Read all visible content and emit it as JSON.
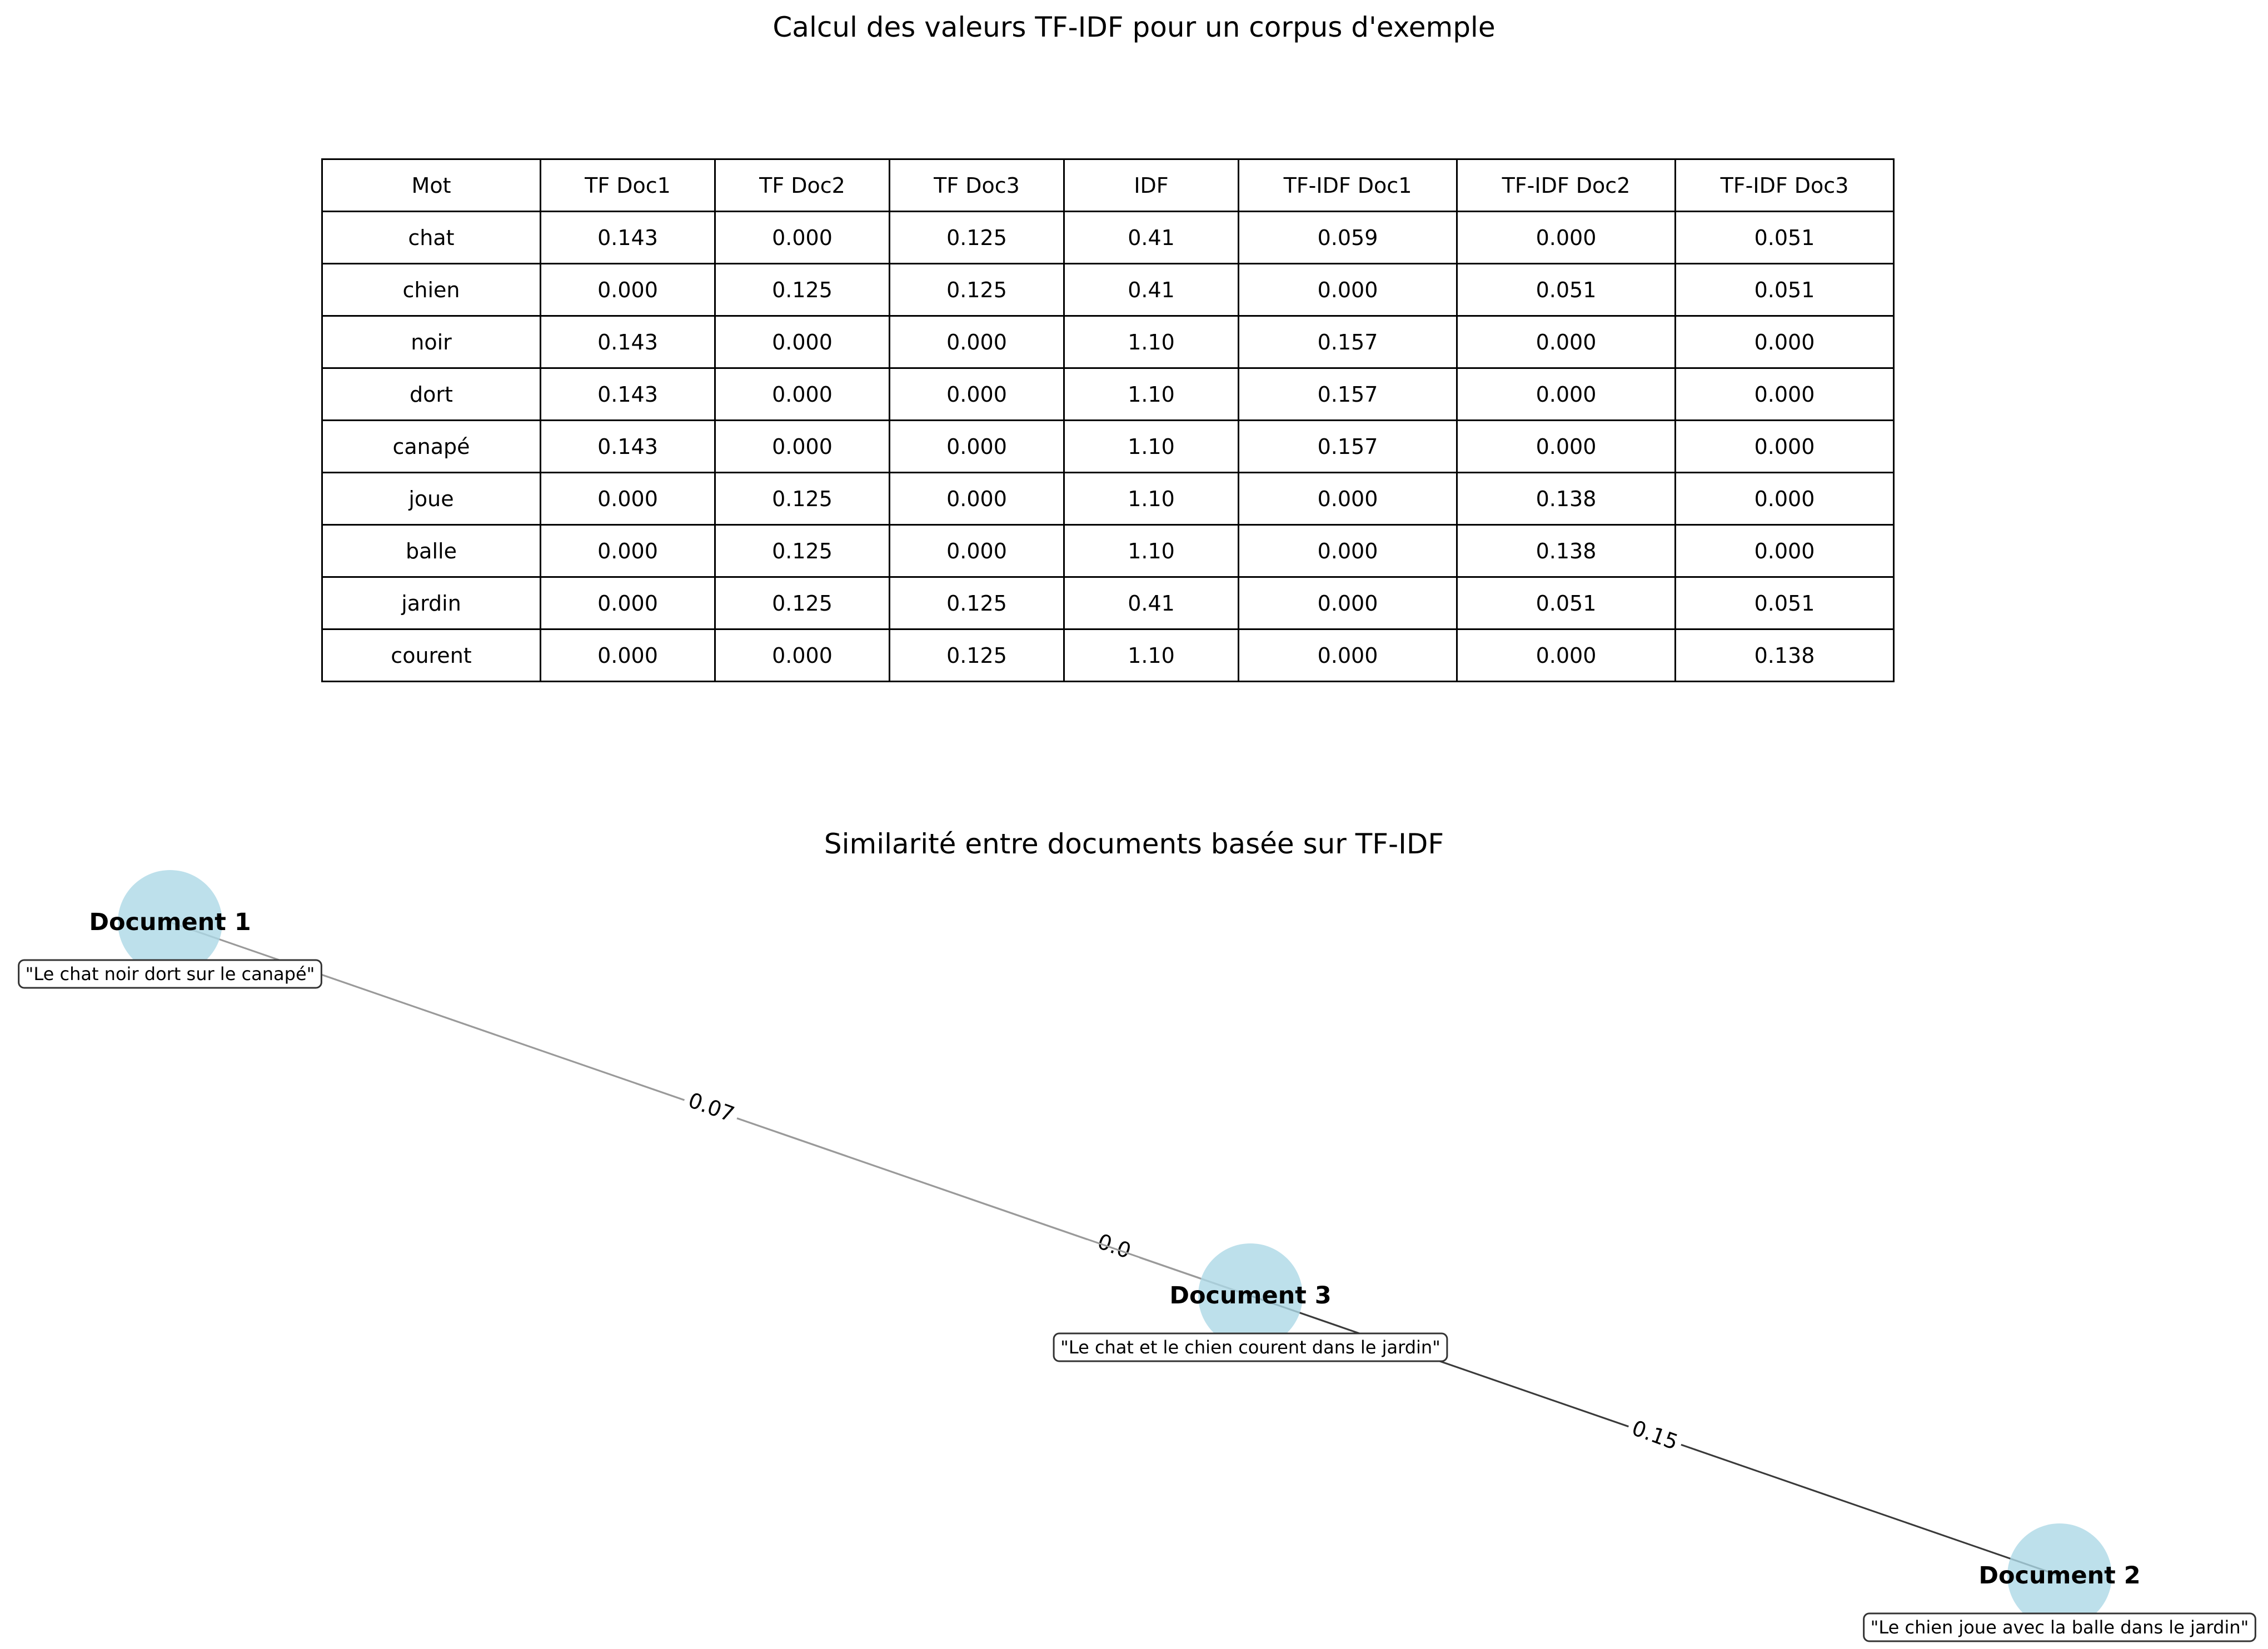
{
  "table_title": "Calcul des valeurs TF-IDF pour un corpus d'exemple",
  "graph_title": "Similarité entre documents basée sur TF-IDF",
  "table": {
    "headers": [
      "Mot",
      "TF Doc1",
      "TF Doc2",
      "TF Doc3",
      "IDF",
      "TF-IDF Doc1",
      "TF-IDF Doc2",
      "TF-IDF Doc3"
    ],
    "rows": [
      [
        "chat",
        "0.143",
        "0.000",
        "0.125",
        "0.41",
        "0.059",
        "0.000",
        "0.051"
      ],
      [
        "chien",
        "0.000",
        "0.125",
        "0.125",
        "0.41",
        "0.000",
        "0.051",
        "0.051"
      ],
      [
        "noir",
        "0.143",
        "0.000",
        "0.000",
        "1.10",
        "0.157",
        "0.000",
        "0.000"
      ],
      [
        "dort",
        "0.143",
        "0.000",
        "0.000",
        "1.10",
        "0.157",
        "0.000",
        "0.000"
      ],
      [
        "canapé",
        "0.143",
        "0.000",
        "0.000",
        "1.10",
        "0.157",
        "0.000",
        "0.000"
      ],
      [
        "joue",
        "0.000",
        "0.125",
        "0.000",
        "1.10",
        "0.000",
        "0.138",
        "0.000"
      ],
      [
        "balle",
        "0.000",
        "0.125",
        "0.000",
        "1.10",
        "0.000",
        "0.138",
        "0.000"
      ],
      [
        "jardin",
        "0.000",
        "0.125",
        "0.125",
        "0.41",
        "0.000",
        "0.051",
        "0.051"
      ],
      [
        "courent",
        "0.000",
        "0.000",
        "0.125",
        "1.10",
        "0.000",
        "0.000",
        "0.138"
      ]
    ]
  },
  "graph": {
    "node_color": "#add8e6",
    "nodes": [
      {
        "id": "doc1",
        "label": "Document 1",
        "text": "\"Le chat noir dort sur le canapé\""
      },
      {
        "id": "doc3",
        "label": "Document 3",
        "text": "\"Le chat et le chien courent dans le jardin\""
      },
      {
        "id": "doc2",
        "label": "Document 2",
        "text": "\"Le chien joue avec la balle dans le jardin\""
      }
    ],
    "edges": [
      {
        "source": "doc1",
        "target": "doc2",
        "weight": "0.0"
      },
      {
        "source": "doc1",
        "target": "doc3",
        "weight": "0.07"
      },
      {
        "source": "doc3",
        "target": "doc2",
        "weight": "0.15"
      }
    ]
  }
}
